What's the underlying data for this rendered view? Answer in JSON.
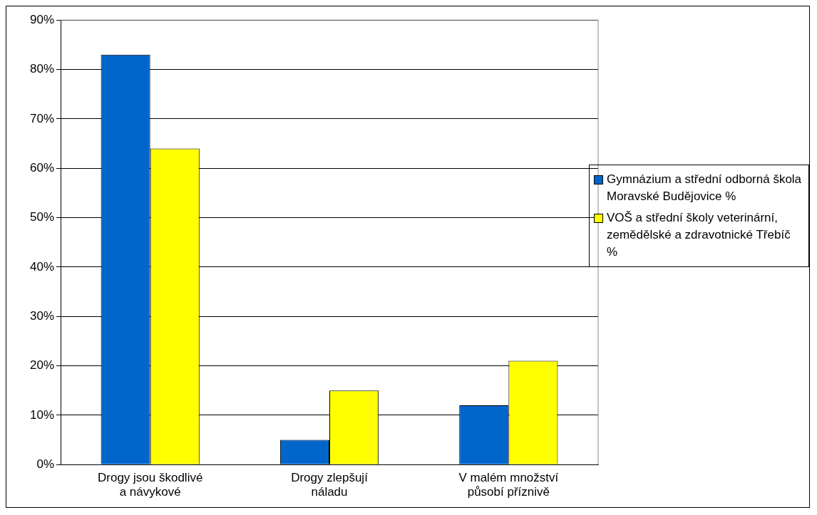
{
  "chart_data": {
    "type": "bar",
    "categories": [
      "Drogy jsou škodlivé a návykové",
      "Drogy zlepšují náladu",
      "V malém množství působí příznivě"
    ],
    "series": [
      {
        "name": "Gymnázium a střední odborná škola Moravské Budějovice %",
        "color": "#0066cc",
        "values": [
          83,
          5,
          12
        ]
      },
      {
        "name": "VOŠ a střední školy veterinární, zemědělské a zdravotnické Třebíč %",
        "color": "#ffff00",
        "values": [
          64,
          15,
          21
        ]
      }
    ],
    "ylim": [
      0,
      90
    ],
    "yticks": [
      {
        "value": 0,
        "label": "0%"
      },
      {
        "value": 10,
        "label": "10%"
      },
      {
        "value": 20,
        "label": "20%"
      },
      {
        "value": 30,
        "label": "30%"
      },
      {
        "value": 40,
        "label": "40%"
      },
      {
        "value": 50,
        "label": "50%"
      },
      {
        "value": 60,
        "label": "60%"
      },
      {
        "value": 70,
        "label": "70%"
      },
      {
        "value": 80,
        "label": "80%"
      },
      {
        "value": 90,
        "label": "90%"
      }
    ],
    "grid": "y",
    "legend": "right"
  }
}
